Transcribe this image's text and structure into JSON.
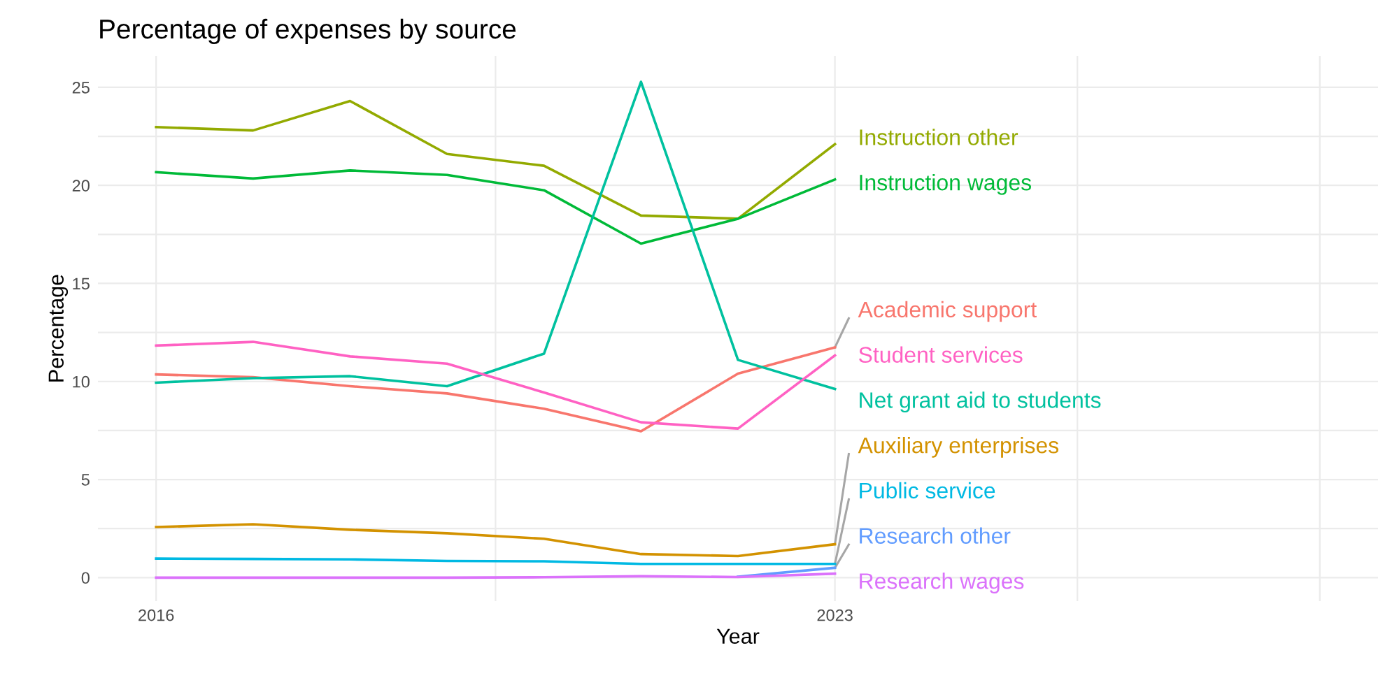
{
  "chart_data": {
    "type": "line",
    "title": "Percentage of expenses by source",
    "xlabel": "Year",
    "ylabel": "Percentage",
    "x": [
      2016,
      2017,
      2018,
      2019,
      2020,
      2021,
      2022,
      2023
    ],
    "xlim": [
      2015.4,
      2028.6
    ],
    "xticks": [
      2016,
      {
        "value": 2019.5,
        "label": null
      },
      2023,
      {
        "value": 2025.5,
        "label": null
      },
      {
        "value": 2028,
        "label": null
      }
    ],
    "ylim": [
      -1.2,
      26.6
    ],
    "yticks": [
      0,
      {
        "value": 2.5,
        "label": null
      },
      5,
      {
        "value": 7.5,
        "label": null
      },
      10,
      {
        "value": 12.5,
        "label": null
      },
      15,
      {
        "value": 17.5,
        "label": null
      },
      20,
      {
        "value": 22.5,
        "label": null
      },
      25
    ],
    "grid": true,
    "legend": false,
    "marker": "none",
    "line_style": "solid",
    "series": [
      {
        "name": "Academic support",
        "color": "#f8766d",
        "values": [
          10.36,
          10.22,
          9.76,
          9.39,
          8.61,
          7.46,
          10.4,
          11.74
        ]
      },
      {
        "name": "Auxiliary enterprises",
        "color": "#d39200",
        "values": [
          2.58,
          2.72,
          2.44,
          2.26,
          1.98,
          1.2,
          1.1,
          1.7
        ]
      },
      {
        "name": "Instruction other",
        "color": "#93aa00",
        "values": [
          22.97,
          22.8,
          24.3,
          21.6,
          21.0,
          18.46,
          18.3,
          22.1
        ]
      },
      {
        "name": "Instruction wages",
        "color": "#00ba38",
        "values": [
          20.67,
          20.35,
          20.76,
          20.53,
          19.75,
          17.03,
          18.3,
          20.3
        ]
      },
      {
        "name": "Net grant aid to students",
        "color": "#00c19f",
        "values": [
          9.94,
          10.17,
          10.27,
          9.76,
          11.42,
          25.28,
          11.1,
          9.62
        ]
      },
      {
        "name": "Public service",
        "color": "#00b9e3",
        "values": [
          0.97,
          0.95,
          0.93,
          0.85,
          0.83,
          0.7,
          0.7,
          0.7
        ]
      },
      {
        "name": "Research other",
        "color": "#619cff",
        "values": [
          null,
          null,
          null,
          null,
          null,
          null,
          0.05,
          0.5
        ]
      },
      {
        "name": "Research wages",
        "color": "#db72fb",
        "values": [
          0,
          0,
          0,
          0,
          0.02,
          0.07,
          0.03,
          0.2
        ]
      },
      {
        "name": "Student services",
        "color": "#ff61c3",
        "values": [
          11.83,
          12.02,
          11.28,
          10.91,
          9.44,
          7.92,
          7.6,
          11.33
        ]
      }
    ]
  }
}
